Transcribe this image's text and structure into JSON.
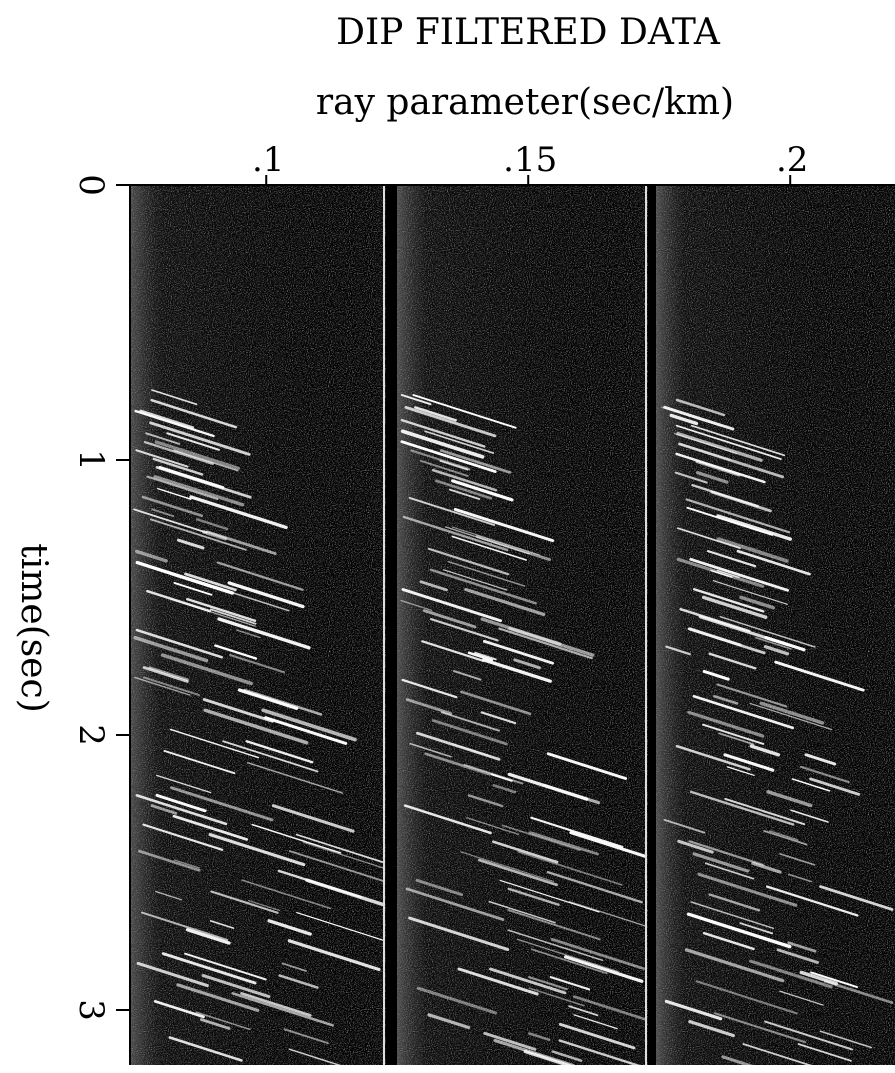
{
  "chart_data": {
    "type": "seismic-image",
    "title": "DIP FILTERED DATA",
    "x_label": "ray parameter(sec/km)",
    "y_label": "time(sec)",
    "xlim": [
      0.074,
      0.22
    ],
    "xticks": [
      {
        "value": 0.1,
        "label": ".1"
      },
      {
        "value": 0.15,
        "label": ".15"
      },
      {
        "value": 0.2,
        "label": ".2"
      }
    ],
    "ylim": [
      0,
      3.2
    ],
    "yticks": [
      0,
      1,
      2,
      3
    ],
    "y_inverted": true
  }
}
